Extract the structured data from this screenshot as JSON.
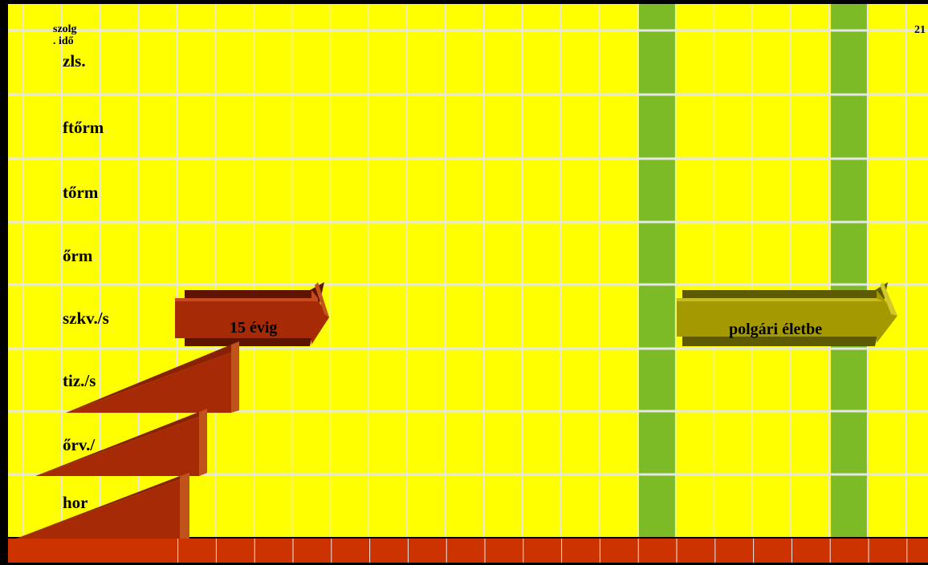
{
  "header": {
    "corner_label": "szolg\n. idő",
    "right_value": "21"
  },
  "rows": [
    {
      "label": "zls.",
      "dot": ""
    },
    {
      "label": "ftőrm",
      "dot": "."
    },
    {
      "label": "tőrm",
      "dot": "."
    },
    {
      "label": "őrm",
      "dot": "."
    },
    {
      "label": "szkv./s",
      "dot": ""
    },
    {
      "label": "tiz./s",
      "dot": ""
    },
    {
      "label": "őrv./",
      "dot": ""
    },
    {
      "label": "hor",
      "dot": ""
    }
  ],
  "arrows": [
    {
      "label": "15 évig"
    },
    {
      "label": "polgári életbe"
    }
  ],
  "colors": {
    "grid_fill": "#ffff00",
    "grid_line": "#e6e6e6",
    "highlight_column": "#7cbb26",
    "bottom_bar": "#cc3300",
    "red_arrow": "#a62a06",
    "olive_arrow": "#a49a00"
  }
}
